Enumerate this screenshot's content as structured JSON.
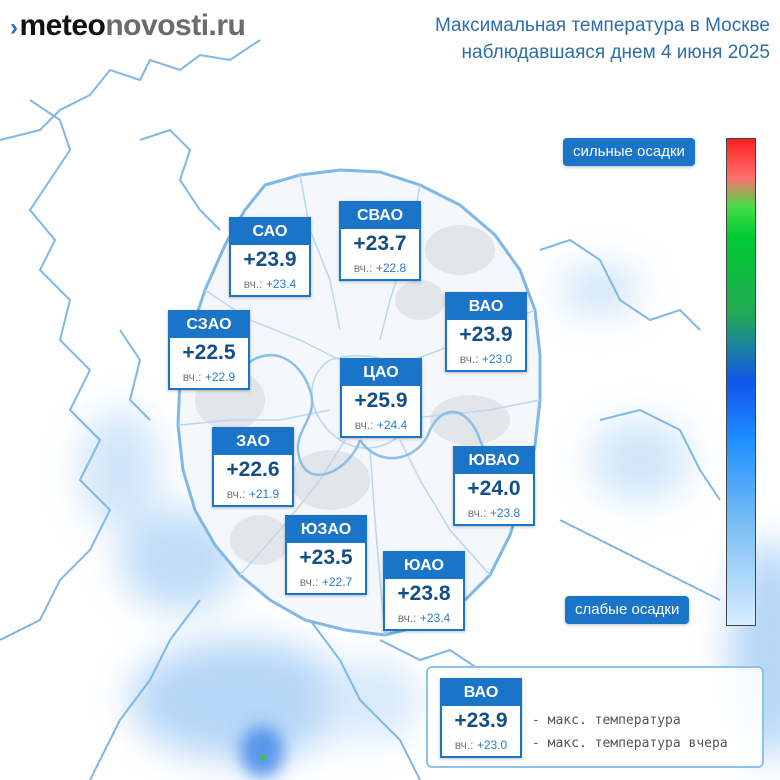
{
  "header": {
    "logo_mark": "›",
    "logo_part1": "meteo",
    "logo_part2": "novosti.ru",
    "title_line1": "Максимальная температура в Москве",
    "title_line2": "наблюдавшаяся днем 4 июня 2025"
  },
  "yesterday_prefix": "вч.:",
  "districts": [
    {
      "id": "sao",
      "name": "САО",
      "temp": "+23.9",
      "yesterday": "+23.4"
    },
    {
      "id": "svao",
      "name": "СВАО",
      "temp": "+23.7",
      "yesterday": "+22.8"
    },
    {
      "id": "szao",
      "name": "СЗАО",
      "temp": "+22.5",
      "yesterday": "+22.9"
    },
    {
      "id": "vao",
      "name": "ВАО",
      "temp": "+23.9",
      "yesterday": "+23.0"
    },
    {
      "id": "cao",
      "name": "ЦАО",
      "temp": "+25.9",
      "yesterday": "+24.4"
    },
    {
      "id": "zao",
      "name": "ЗАО",
      "temp": "+22.6",
      "yesterday": "+21.9"
    },
    {
      "id": "yuvao",
      "name": "ЮВАО",
      "temp": "+24.0",
      "yesterday": "+23.8"
    },
    {
      "id": "yuzao",
      "name": "ЮЗАО",
      "temp": "+23.5",
      "yesterday": "+22.7"
    },
    {
      "id": "yuao",
      "name": "ЮАО",
      "temp": "+23.8",
      "yesterday": "+23.4"
    }
  ],
  "precip_scale": {
    "top_label": "сильные осадки",
    "bottom_label": "слабые осадки",
    "colors": [
      "#ff2020",
      "#00cc33",
      "#1155ee",
      "#d8eeff"
    ]
  },
  "legend": {
    "name": "ВАО",
    "temp": "+23.9",
    "yesterday": "+23.0",
    "desc_temp": "- макс. температура",
    "desc_yesterday": "- макс. температура вчера"
  },
  "colors": {
    "accent": "#1a75c9",
    "title": "#2d6ea8"
  }
}
